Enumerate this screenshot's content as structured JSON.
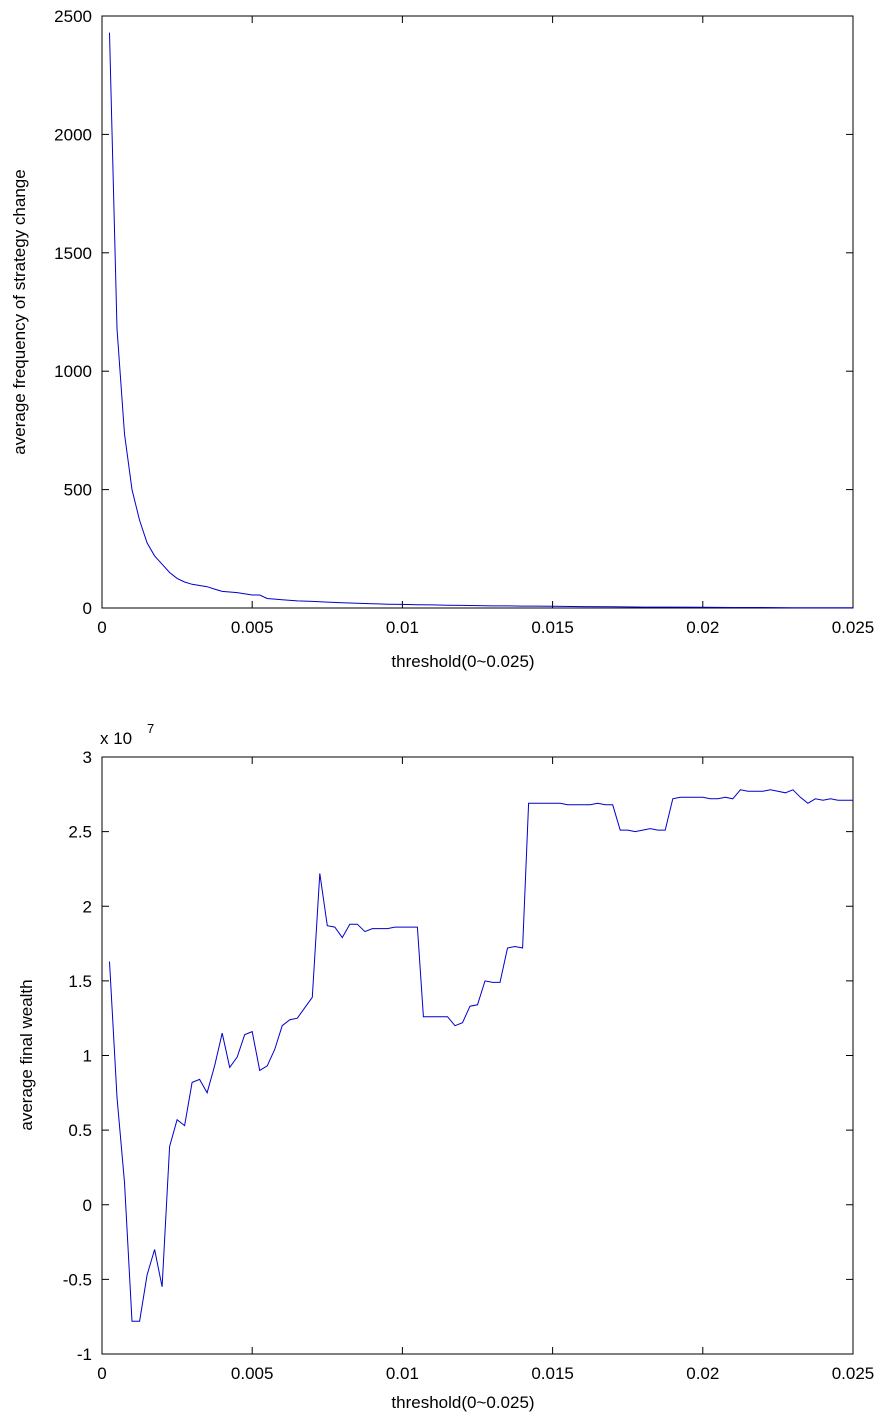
{
  "chart_data": [
    {
      "type": "line",
      "xlabel": "threshold(0~0.025)",
      "ylabel": "average frequency of strategy change",
      "xlim": [
        0,
        0.025
      ],
      "ylim": [
        0,
        2500
      ],
      "grid": false,
      "color": "#0000cc",
      "x_ticks": [
        "0",
        "0.005",
        "0.01",
        "0.015",
        "0.02",
        "0.025"
      ],
      "y_ticks": [
        "0",
        "500",
        "1000",
        "1500",
        "2000",
        "2500"
      ],
      "series": [
        {
          "x": [
            0.00025,
            0.0005,
            0.00075,
            0.001,
            0.00125,
            0.0015,
            0.00175,
            0.002,
            0.00225,
            0.0025,
            0.00275,
            0.003,
            0.00325,
            0.0035,
            0.00375,
            0.004,
            0.0045,
            0.005,
            0.00525,
            0.0055,
            0.006,
            0.0065,
            0.007,
            0.0075,
            0.008,
            0.0085,
            0.009,
            0.0095,
            0.01,
            0.0105,
            0.011,
            0.0115,
            0.012,
            0.0125,
            0.013,
            0.0135,
            0.014,
            0.0145,
            0.015,
            0.016,
            0.017,
            0.018,
            0.019,
            0.02,
            0.021,
            0.022,
            0.023,
            0.024,
            0.025
          ],
          "values": [
            2430,
            1180,
            735,
            500,
            370,
            275,
            220,
            185,
            150,
            125,
            110,
            100,
            95,
            90,
            80,
            70,
            65,
            55,
            55,
            40,
            35,
            30,
            28,
            25,
            22,
            20,
            18,
            16,
            15,
            14,
            13,
            12,
            11,
            10,
            9,
            9,
            8,
            8,
            7,
            6,
            5,
            4,
            4,
            3,
            2,
            2,
            1,
            1,
            1
          ]
        }
      ]
    },
    {
      "type": "line",
      "xlabel": "threshold(0~0.025)",
      "ylabel": "average final wealth",
      "multiplier": "x 10",
      "exponent": "7",
      "xlim": [
        0,
        0.025
      ],
      "ylim": [
        -1,
        3
      ],
      "grid": false,
      "color": "#0000cc",
      "x_ticks": [
        "0",
        "0.005",
        "0.01",
        "0.015",
        "0.02",
        "0.025"
      ],
      "y_ticks": [
        "-1",
        "-0.5",
        "0",
        "0.5",
        "1",
        "1.5",
        "2",
        "2.5",
        "3"
      ],
      "series": [
        {
          "x": [
            0.00025,
            0.0005,
            0.00075,
            0.001,
            0.00125,
            0.0015,
            0.00175,
            0.002,
            0.00225,
            0.0025,
            0.00275,
            0.003,
            0.00325,
            0.0035,
            0.00375,
            0.004,
            0.00425,
            0.0045,
            0.00475,
            0.005,
            0.00525,
            0.0055,
            0.00575,
            0.006,
            0.00625,
            0.0065,
            0.00675,
            0.007,
            0.00725,
            0.0075,
            0.00775,
            0.008,
            0.00825,
            0.0085,
            0.00875,
            0.009,
            0.00925,
            0.0095,
            0.00975,
            0.01,
            0.01025,
            0.0105,
            0.0107,
            0.011,
            0.01125,
            0.0115,
            0.01175,
            0.012,
            0.01225,
            0.0125,
            0.01275,
            0.013,
            0.01325,
            0.0135,
            0.01375,
            0.014,
            0.0142,
            0.0145,
            0.01475,
            0.015,
            0.01525,
            0.0155,
            0.01575,
            0.016,
            0.01625,
            0.0165,
            0.01675,
            0.017,
            0.01725,
            0.0175,
            0.01775,
            0.018,
            0.01825,
            0.0185,
            0.01875,
            0.019,
            0.01925,
            0.0195,
            0.01975,
            0.02,
            0.02025,
            0.0205,
            0.02075,
            0.021,
            0.02125,
            0.0215,
            0.02175,
            0.022,
            0.02225,
            0.0225,
            0.02275,
            0.023,
            0.02325,
            0.0235,
            0.02375,
            0.024,
            0.02425,
            0.0245,
            0.02475,
            0.025
          ],
          "values": [
            1.63,
            0.72,
            0.15,
            -0.78,
            -0.78,
            -0.47,
            -0.3,
            -0.55,
            0.39,
            0.57,
            0.53,
            0.82,
            0.84,
            0.75,
            0.93,
            1.15,
            0.92,
            0.99,
            1.14,
            1.16,
            0.9,
            0.93,
            1.04,
            1.2,
            1.24,
            1.25,
            1.32,
            1.39,
            2.22,
            1.87,
            1.86,
            1.79,
            1.88,
            1.88,
            1.83,
            1.85,
            1.85,
            1.85,
            1.86,
            1.86,
            1.86,
            1.86,
            1.26,
            1.26,
            1.26,
            1.26,
            1.2,
            1.22,
            1.33,
            1.34,
            1.5,
            1.49,
            1.49,
            1.72,
            1.73,
            1.72,
            2.69,
            2.69,
            2.69,
            2.69,
            2.69,
            2.68,
            2.68,
            2.68,
            2.68,
            2.69,
            2.68,
            2.68,
            2.51,
            2.51,
            2.5,
            2.51,
            2.52,
            2.51,
            2.51,
            2.72,
            2.73,
            2.73,
            2.73,
            2.73,
            2.72,
            2.72,
            2.73,
            2.72,
            2.78,
            2.77,
            2.77,
            2.77,
            2.78,
            2.77,
            2.76,
            2.78,
            2.73,
            2.69,
            2.72,
            2.71,
            2.72,
            2.71,
            2.71,
            2.71
          ]
        }
      ]
    }
  ]
}
